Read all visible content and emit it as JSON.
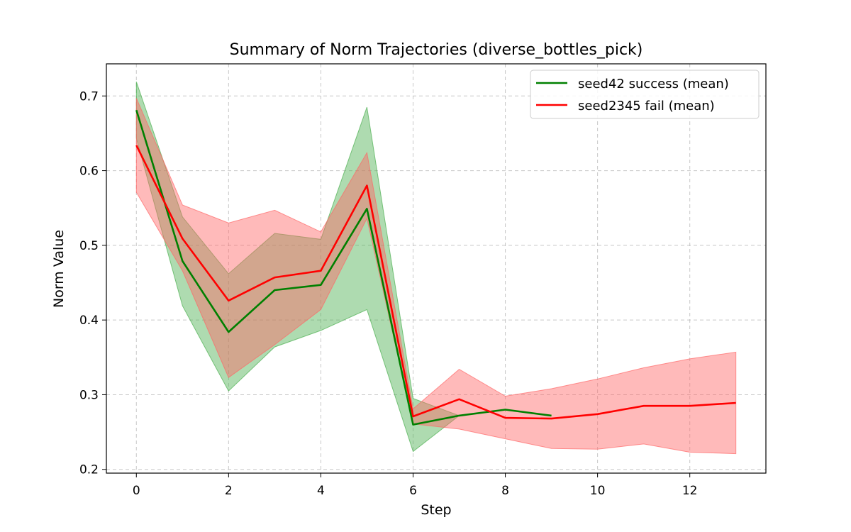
{
  "chart_data": {
    "type": "line",
    "title": "Summary of Norm Trajectories (diverse_bottles_pick)",
    "xlabel": "Step",
    "ylabel": "Norm Value",
    "xlim": [
      -0.65,
      13.65
    ],
    "ylim": [
      0.195,
      0.743
    ],
    "xticks": [
      0,
      2,
      4,
      6,
      8,
      10,
      12
    ],
    "yticks": [
      0.2,
      0.3,
      0.4,
      0.5,
      0.6,
      0.7
    ],
    "xtick_labels": [
      "0",
      "2",
      "4",
      "6",
      "8",
      "10",
      "12"
    ],
    "ytick_labels": [
      "0.2",
      "0.3",
      "0.4",
      "0.5",
      "0.6",
      "0.7"
    ],
    "grid": true,
    "legend_position": "top-right",
    "series": [
      {
        "name": "seed42 success (mean)",
        "color": "#008000",
        "band_color": "#4caf50",
        "x": [
          0,
          1,
          2,
          3,
          4,
          5,
          6,
          7,
          8,
          9
        ],
        "mean": [
          0.681,
          0.479,
          0.384,
          0.44,
          0.447,
          0.549,
          0.26,
          0.272,
          0.28,
          0.272
        ],
        "upper": [
          0.719,
          0.538,
          0.462,
          0.516,
          0.508,
          0.685,
          0.295,
          0.272,
          0.28,
          0.272
        ],
        "lower": [
          0.643,
          0.419,
          0.305,
          0.364,
          0.386,
          0.414,
          0.224,
          0.272,
          0.28,
          0.272
        ]
      },
      {
        "name": "seed2345 fail (mean)",
        "color": "#ff0000",
        "band_color": "#ff6666",
        "x": [
          0,
          1,
          2,
          3,
          4,
          5,
          6,
          7,
          8,
          9,
          10,
          11,
          12,
          13
        ],
        "mean": [
          0.634,
          0.509,
          0.426,
          0.457,
          0.466,
          0.58,
          0.271,
          0.294,
          0.269,
          0.268,
          0.274,
          0.285,
          0.285,
          0.289
        ],
        "upper": [
          0.697,
          0.554,
          0.53,
          0.547,
          0.518,
          0.624,
          0.281,
          0.334,
          0.298,
          0.308,
          0.321,
          0.336,
          0.348,
          0.357
        ],
        "lower": [
          0.571,
          0.466,
          0.323,
          0.367,
          0.414,
          0.536,
          0.261,
          0.254,
          0.241,
          0.228,
          0.227,
          0.234,
          0.223,
          0.221
        ]
      }
    ]
  }
}
